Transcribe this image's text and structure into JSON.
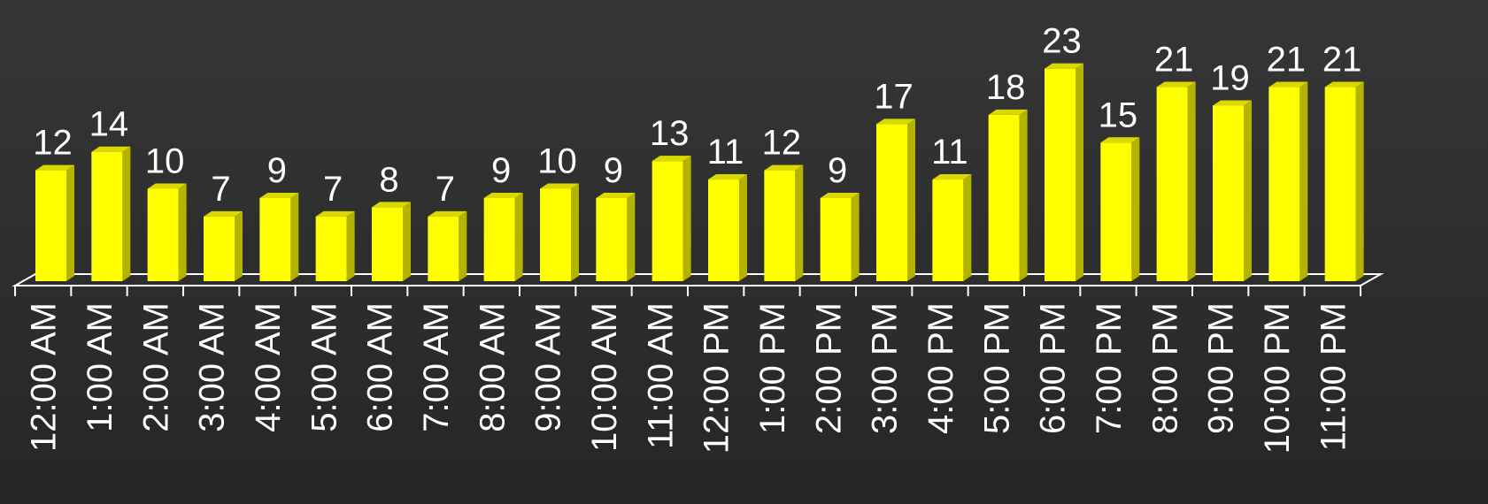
{
  "chart_data": {
    "type": "bar3d",
    "categories": [
      "12:00 AM",
      "1:00 AM",
      "2:00 AM",
      "3:00 AM",
      "4:00 AM",
      "5:00 AM",
      "6:00 AM",
      "7:00 AM",
      "8:00 AM",
      "9:00 AM",
      "10:00 AM",
      "11:00 AM",
      "12:00 PM",
      "1:00 PM",
      "2:00 PM",
      "3:00 PM",
      "4:00 PM",
      "5:00 PM",
      "6:00 PM",
      "7:00 PM",
      "8:00 PM",
      "9:00 PM",
      "10:00 PM",
      "11:00 PM"
    ],
    "values": [
      12,
      14,
      10,
      7,
      9,
      7,
      8,
      7,
      9,
      10,
      9,
      13,
      11,
      12,
      9,
      17,
      11,
      18,
      23,
      15,
      21,
      19,
      21,
      21
    ],
    "color": "#ffff00"
  }
}
